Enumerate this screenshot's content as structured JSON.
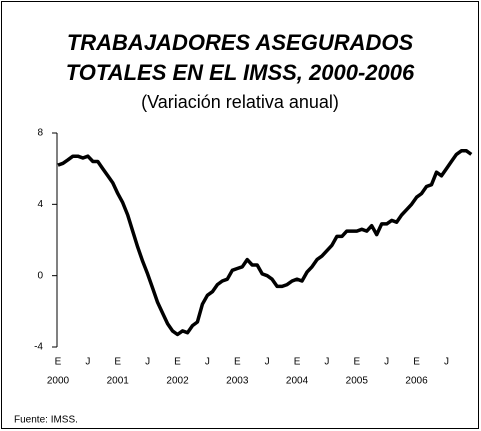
{
  "chart_data": {
    "type": "line",
    "title": [
      "TRABAJADORES ASEGURADOS",
      "TOTALES EN EL IMSS, 2000-2006"
    ],
    "subtitle": "(Variación relativa anual)",
    "source": "Fuente: IMSS.",
    "categories": [
      "E",
      null,
      null,
      null,
      null,
      null,
      "J",
      null,
      null,
      null,
      null,
      null,
      "E",
      null,
      null,
      null,
      null,
      null,
      "J",
      null,
      null,
      null,
      null,
      null,
      "E",
      null,
      null,
      null,
      null,
      null,
      "J",
      null,
      null,
      null,
      null,
      null,
      "E",
      null,
      null,
      null,
      null,
      null,
      "J",
      null,
      null,
      null,
      null,
      null,
      "E",
      null,
      null,
      null,
      null,
      null,
      "J",
      null,
      null,
      null,
      null,
      null,
      "E",
      null,
      null,
      null,
      null,
      null,
      "J",
      null,
      null,
      null,
      null,
      null,
      "E",
      null,
      null,
      null,
      null,
      null,
      "J",
      null,
      null,
      null,
      null,
      null
    ],
    "year_labels": [
      "2000",
      "2001",
      "2002",
      "2003",
      "2004",
      "2005",
      "2006"
    ],
    "series": [
      {
        "color": "#000000",
        "values": [
          6.2,
          6.3,
          6.5,
          6.7,
          6.7,
          6.6,
          6.7,
          6.4,
          6.4,
          6.0,
          5.6,
          5.2,
          4.6,
          4.1,
          3.4,
          2.5,
          1.6,
          0.8,
          0.1,
          -0.7,
          -1.5,
          -2.1,
          -2.7,
          -3.1,
          -3.3,
          -3.1,
          -3.2,
          -2.8,
          -2.6,
          -1.6,
          -1.1,
          -0.9,
          -0.5,
          -0.3,
          -0.2,
          0.3,
          0.4,
          0.5,
          0.9,
          0.6,
          0.6,
          0.1,
          0.0,
          -0.2,
          -0.6,
          -0.6,
          -0.5,
          -0.3,
          -0.2,
          -0.3,
          0.2,
          0.5,
          0.9,
          1.1,
          1.4,
          1.7,
          2.2,
          2.2,
          2.5,
          2.5,
          2.5,
          2.6,
          2.5,
          2.8,
          2.3,
          2.9,
          2.9,
          3.1,
          3.0,
          3.4,
          3.7,
          4.0,
          4.4,
          4.6,
          5.0,
          5.1,
          5.8,
          5.6,
          6.0,
          6.4,
          6.8,
          7.0,
          7.0,
          6.8
        ]
      }
    ],
    "ylim": [
      -4,
      8
    ],
    "yticks": [
      -4,
      0,
      4,
      8
    ]
  }
}
